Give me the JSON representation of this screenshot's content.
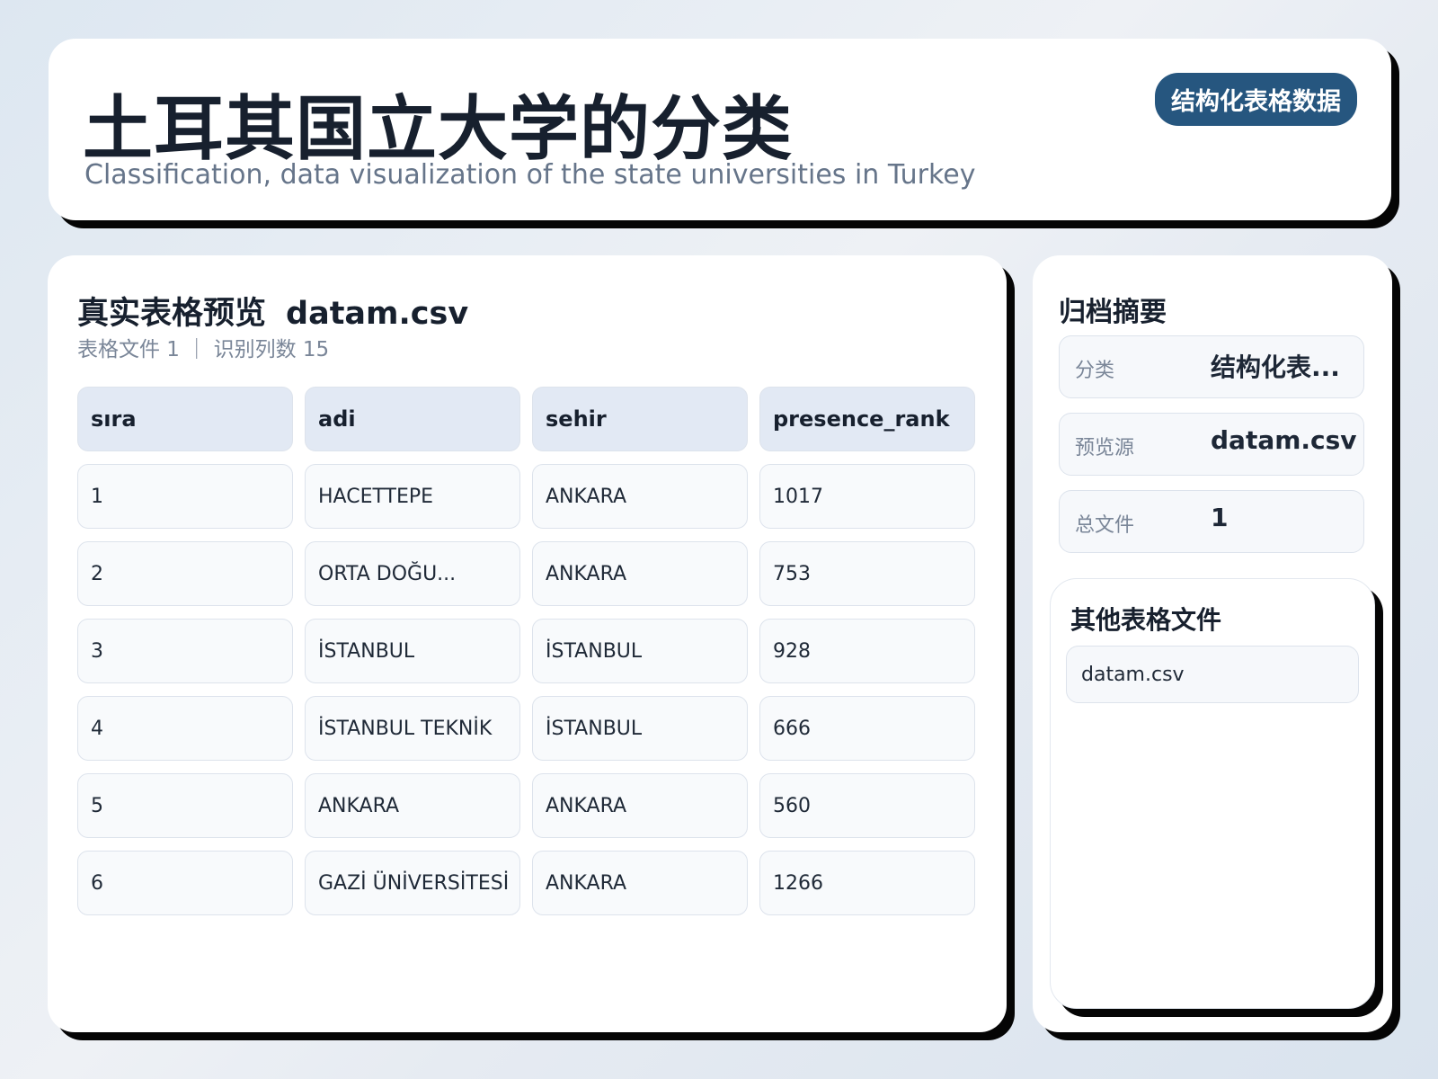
{
  "header": {
    "title": "土耳其国立大学的分类",
    "subtitle": "Classification, data visualization of the state universities in Turkey",
    "badge": "结构化表格数据"
  },
  "preview": {
    "title": "真实表格预览",
    "file": "datam.csv",
    "meta": "表格文件 1 ｜ 识别列数 15",
    "table": {
      "columns": [
        "﻿sıra",
        "adi",
        "sehir",
        "presence_rank"
      ],
      "rows": [
        [
          "1",
          "HACETTEPE",
          "ANKARA",
          "1017"
        ],
        [
          "2",
          "ORTA DOĞU...",
          "ANKARA",
          "753"
        ],
        [
          "3",
          "İSTANBUL",
          "İSTANBUL",
          "928"
        ],
        [
          "4",
          "İSTANBUL TEKNİK",
          "İSTANBUL",
          "666"
        ],
        [
          "5",
          "ANKARA",
          "ANKARA",
          "560"
        ],
        [
          "6",
          "GAZİ ÜNİVERSİTESİ",
          "ANKARA",
          "1266"
        ]
      ]
    }
  },
  "summary": {
    "title": "归档摘要",
    "items": [
      {
        "label": "分类",
        "value": "结构化表..."
      },
      {
        "label": "预览源",
        "value": "datam.csv"
      },
      {
        "label": "总文件",
        "value": "1"
      }
    ]
  },
  "other_files": {
    "title": "其他表格文件",
    "files": [
      "datam.csv"
    ]
  }
}
